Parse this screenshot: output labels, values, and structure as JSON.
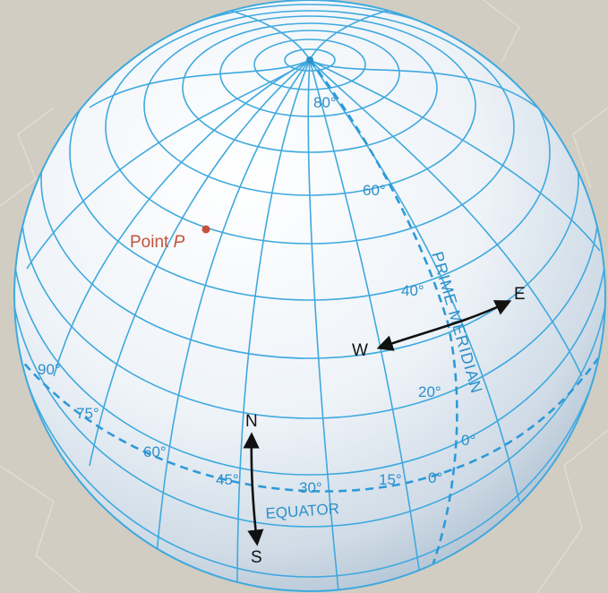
{
  "colors": {
    "background": "#d2cdc2",
    "grid": "#3fa9df",
    "globe_light": "#ffffff",
    "globe_shadow": "#b7c7d6",
    "point": "#c4523a",
    "arrow": "#111111"
  },
  "point": {
    "label": "Point",
    "symbol": "P"
  },
  "latitude_labels": [
    "80°",
    "60°",
    "40°",
    "20°",
    "0°"
  ],
  "longitude_labels": [
    "90°",
    "75°",
    "60°",
    "45°",
    "30°",
    "15°",
    "0°"
  ],
  "equator_label": "EQUATOR",
  "prime_meridian_label": "PRIME MERIDIAN",
  "compass": {
    "north": "N",
    "south": "S",
    "east": "E",
    "west": "W"
  }
}
